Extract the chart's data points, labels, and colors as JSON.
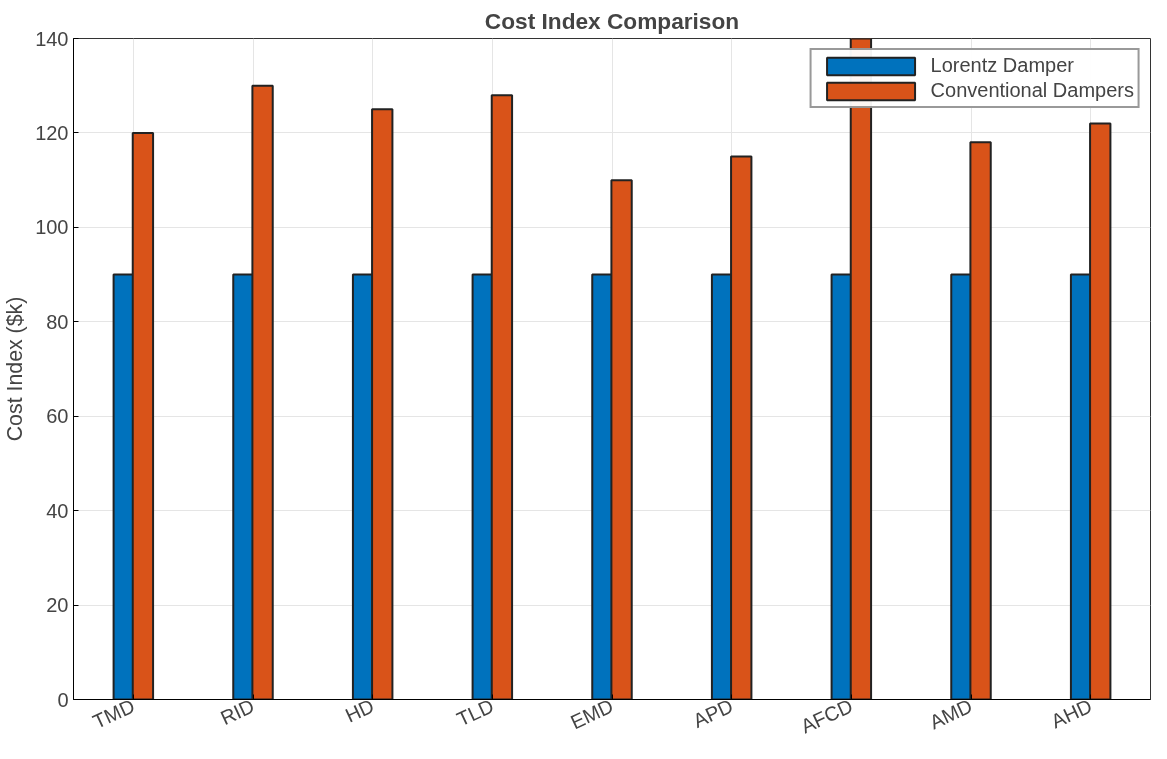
{
  "chart_data": {
    "type": "bar",
    "title": "Cost Index Comparison",
    "ylabel": "Cost Index ($k)",
    "categories": [
      "TMD",
      "RID",
      "HD",
      "TLD",
      "EMD",
      "APD",
      "AFCD",
      "AMD",
      "AHD"
    ],
    "series": [
      {
        "name": "Lorentz Damper",
        "color": "#0072bd",
        "values": [
          90,
          90,
          90,
          90,
          90,
          90,
          90,
          90,
          90
        ]
      },
      {
        "name": "Conventional Dampers",
        "color": "#d95319",
        "values": [
          120,
          130,
          125,
          128,
          110,
          115,
          140,
          118,
          122
        ]
      }
    ],
    "ylim": [
      0,
      140
    ],
    "yticks": [
      0,
      20,
      40,
      60,
      80,
      100,
      120,
      140
    ],
    "grid": true,
    "legend": "top right"
  }
}
